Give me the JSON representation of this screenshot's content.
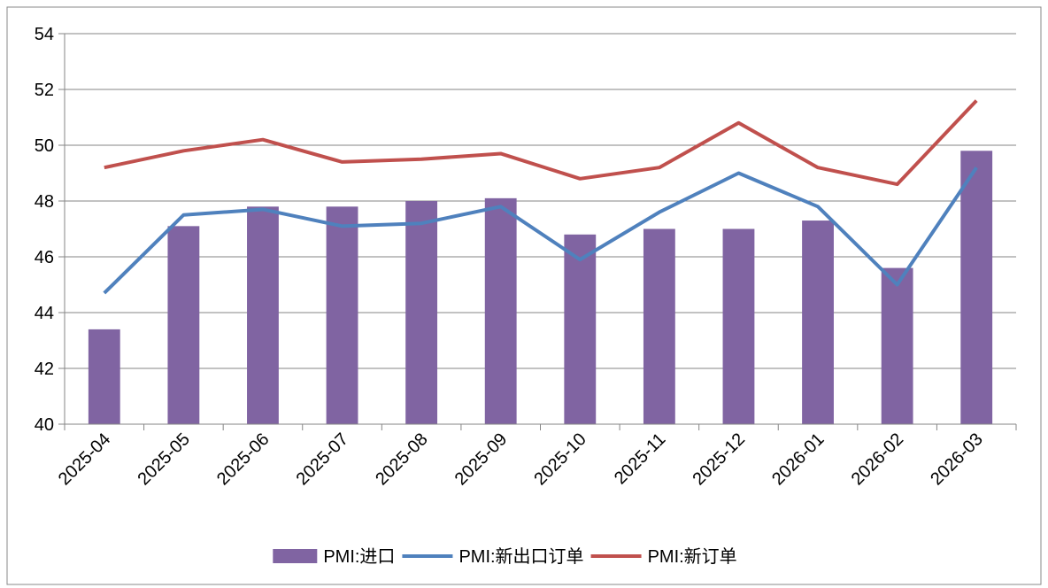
{
  "chart_data": {
    "type": "bar",
    "categories": [
      "2025-04",
      "2025-05",
      "2025-06",
      "2025-07",
      "2025-08",
      "2025-09",
      "2025-10",
      "2025-11",
      "2025-12",
      "2026-01",
      "2026-02",
      "2026-03"
    ],
    "series": [
      {
        "name": "PMI:进口",
        "type": "bar",
        "color": "#8064a2",
        "values": [
          43.4,
          47.1,
          47.8,
          47.8,
          48.0,
          48.1,
          46.8,
          47.0,
          47.0,
          47.3,
          45.6,
          49.8
        ]
      },
      {
        "name": "PMI:新出口订单",
        "type": "line",
        "color": "#4f81bd",
        "values": [
          44.7,
          47.5,
          47.7,
          47.1,
          47.2,
          47.8,
          45.9,
          47.6,
          49.0,
          47.8,
          45.0,
          49.2
        ]
      },
      {
        "name": "PMI:新订单",
        "type": "line",
        "color": "#c0504d",
        "values": [
          49.2,
          49.8,
          50.2,
          49.4,
          49.5,
          49.7,
          48.8,
          49.2,
          50.8,
          49.2,
          48.6,
          51.6
        ]
      }
    ],
    "ylim": [
      40,
      54
    ],
    "yticks": [
      40,
      42,
      44,
      46,
      48,
      50,
      52,
      54
    ],
    "grid": true,
    "legend": "bottom"
  }
}
